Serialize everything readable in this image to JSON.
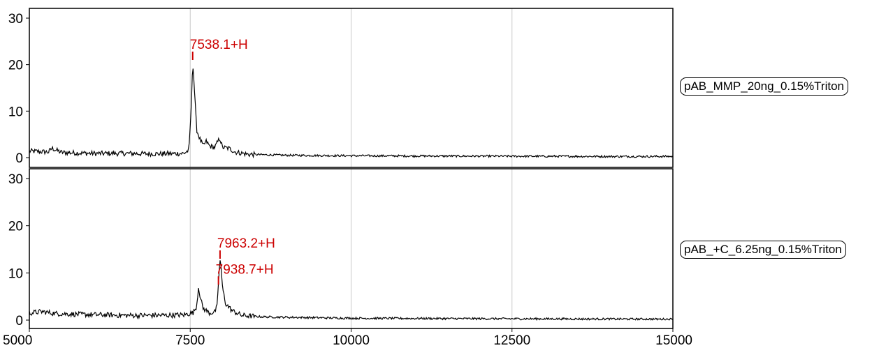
{
  "chart_data": {
    "type": "line",
    "xlim": [
      5000,
      15000
    ],
    "x_ticks": [
      "5000",
      "7500",
      "10000",
      "12500",
      "15000"
    ],
    "grid": true,
    "panels": [
      {
        "name": "pAB_MMP_20ng_0.15%Triton",
        "ylim": [
          0,
          30
        ],
        "y_ticks": [
          "0",
          "10",
          "20",
          "30"
        ],
        "peaks": [
          {
            "x": 7538.1,
            "label": "7538.1+H",
            "y": 21
          }
        ],
        "points": [
          [
            5000,
            1.4
          ],
          [
            5300,
            1.2
          ],
          [
            5350,
            2.0
          ],
          [
            5500,
            1.1
          ],
          [
            6000,
            0.9
          ],
          [
            6500,
            0.9
          ],
          [
            7000,
            0.8
          ],
          [
            7400,
            0.9
          ],
          [
            7480,
            1.6
          ],
          [
            7520,
            12
          ],
          [
            7538,
            21
          ],
          [
            7560,
            16
          ],
          [
            7600,
            6
          ],
          [
            7650,
            4
          ],
          [
            7700,
            2.5
          ],
          [
            7750,
            3.5
          ],
          [
            7800,
            2.5
          ],
          [
            7880,
            2.2
          ],
          [
            7960,
            4.2
          ],
          [
            8000,
            2.2
          ],
          [
            8100,
            2.0
          ],
          [
            8200,
            1.2
          ],
          [
            8400,
            0.7
          ],
          [
            9000,
            0.5
          ],
          [
            10000,
            0.4
          ],
          [
            11000,
            0.35
          ],
          [
            12500,
            0.3
          ],
          [
            14000,
            0.25
          ],
          [
            15000,
            0.25
          ]
        ]
      },
      {
        "name": "pAB_+C_6.25ng_0.15%Triton",
        "ylim": [
          0,
          30
        ],
        "y_ticks": [
          "0",
          "10",
          "20",
          "30"
        ],
        "peaks": [
          {
            "x": 7938.7,
            "label": "7938.7+H",
            "y": 7.5
          },
          {
            "x": 7963.2,
            "label": "7963.2+H",
            "y": 13
          }
        ],
        "points": [
          [
            5000,
            1.5
          ],
          [
            5200,
            1.8
          ],
          [
            5400,
            1.4
          ],
          [
            5800,
            1.2
          ],
          [
            6500,
            1.0
          ],
          [
            7000,
            1.0
          ],
          [
            7400,
            1.1
          ],
          [
            7550,
            1.6
          ],
          [
            7600,
            3.0
          ],
          [
            7630,
            7.2
          ],
          [
            7660,
            4.5
          ],
          [
            7700,
            2.5
          ],
          [
            7800,
            1.5
          ],
          [
            7880,
            1.7
          ],
          [
            7920,
            3.0
          ],
          [
            7950,
            11
          ],
          [
            7970,
            13
          ],
          [
            8000,
            7
          ],
          [
            8050,
            3.5
          ],
          [
            8150,
            2.0
          ],
          [
            8300,
            1.0
          ],
          [
            8600,
            0.7
          ],
          [
            9000,
            0.6
          ],
          [
            10000,
            0.4
          ],
          [
            12000,
            0.3
          ],
          [
            15000,
            0.2
          ]
        ]
      }
    ]
  }
}
